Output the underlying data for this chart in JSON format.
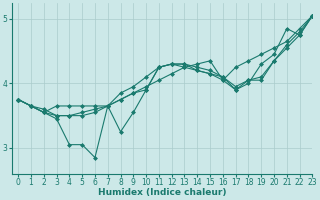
{
  "xlabel": "Humidex (Indice chaleur)",
  "xlim": [
    -0.5,
    23
  ],
  "ylim": [
    2.6,
    5.25
  ],
  "yticks": [
    3,
    4,
    5
  ],
  "xticks": [
    0,
    1,
    2,
    3,
    4,
    5,
    6,
    7,
    8,
    9,
    10,
    11,
    12,
    13,
    14,
    15,
    16,
    17,
    18,
    19,
    20,
    21,
    22,
    23
  ],
  "background_color": "#cce8e8",
  "grid_color": "#aacccc",
  "line_color": "#1a7a6e",
  "lines": [
    [
      3.75,
      3.65,
      3.55,
      3.45,
      3.05,
      3.05,
      2.85,
      3.65,
      3.25,
      3.55,
      3.9,
      4.25,
      4.3,
      4.3,
      4.2,
      4.15,
      4.05,
      3.9,
      4.05,
      4.05,
      4.35,
      4.55,
      4.75,
      5.05
    ],
    [
      3.75,
      3.65,
      3.55,
      3.65,
      3.65,
      3.65,
      3.65,
      3.65,
      3.75,
      3.85,
      3.95,
      4.05,
      4.15,
      4.25,
      4.3,
      4.35,
      4.05,
      4.25,
      4.35,
      4.45,
      4.55,
      4.65,
      4.85,
      5.05
    ],
    [
      3.75,
      3.65,
      3.6,
      3.5,
      3.5,
      3.55,
      3.6,
      3.65,
      3.85,
      3.95,
      4.1,
      4.25,
      4.3,
      4.25,
      4.2,
      4.15,
      4.1,
      3.9,
      4.0,
      4.3,
      4.45,
      4.85,
      4.75,
      5.05
    ],
    [
      3.75,
      3.65,
      3.55,
      3.5,
      3.5,
      3.5,
      3.55,
      3.65,
      3.75,
      3.85,
      3.9,
      4.25,
      4.3,
      4.3,
      4.25,
      4.2,
      4.1,
      3.95,
      4.05,
      4.1,
      4.35,
      4.6,
      4.8,
      5.05
    ]
  ],
  "marker": "D",
  "markersize": 2.0,
  "linewidth": 0.8,
  "tick_fontsize": 5.5,
  "xlabel_fontsize": 6.5
}
